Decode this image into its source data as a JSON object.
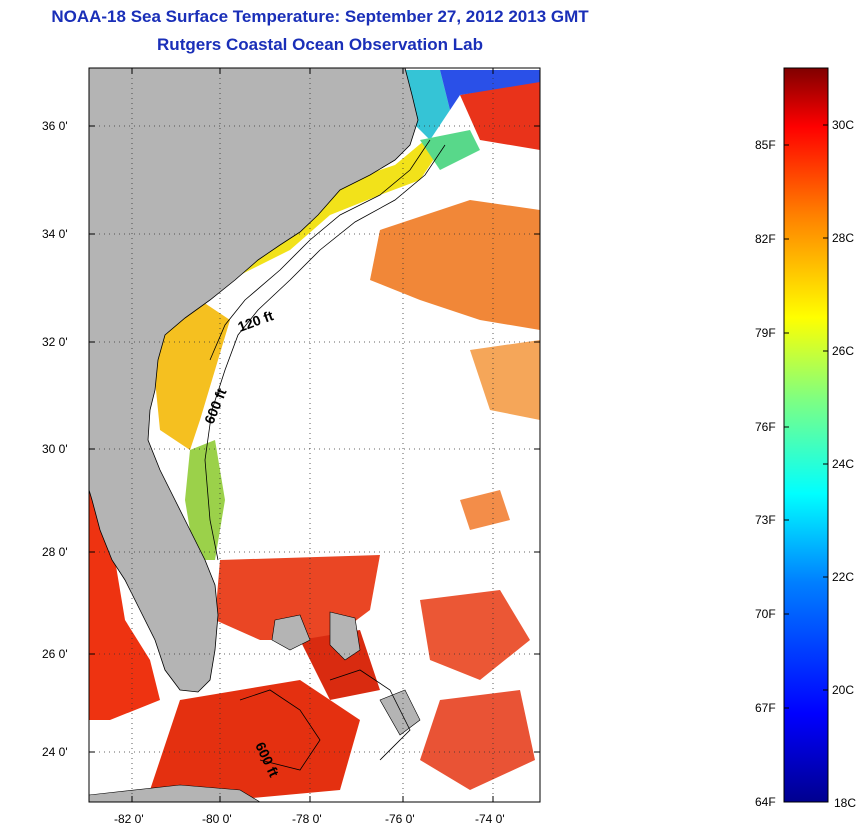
{
  "title_line1": "NOAA-18 Sea Surface Temperature:  September 27, 2012 2013 GMT",
  "title_line2": "Rutgers Coastal Ocean Observation Lab",
  "map": {
    "lat_ticks": [
      "36 0'",
      "34 0'",
      "32 0'",
      "30 0'",
      "28 0'",
      "26 0'",
      "24 0'"
    ],
    "lon_ticks": [
      "-82 0'",
      "-80 0'",
      "-78 0'",
      "-76 0'",
      "-74 0'"
    ],
    "isobath_labels": [
      "120 ft",
      "600 ft",
      "600 ft"
    ],
    "colors": {
      "land": "#b4b4b4",
      "cloud": "#ffffff"
    }
  },
  "colorbar": {
    "fahrenheit": [
      "85F",
      "82F",
      "79F",
      "76F",
      "73F",
      "70F",
      "67F",
      "64F"
    ],
    "celsius": [
      "30C",
      "28C",
      "26C",
      "24C",
      "22C",
      "20C",
      "18C"
    ],
    "range_c": [
      18,
      31.5
    ],
    "colors": [
      "#00008f",
      "#0000ff",
      "#0080ff",
      "#00ffff",
      "#80ff80",
      "#ffff00",
      "#ff8000",
      "#ff0000",
      "#800000"
    ]
  }
}
